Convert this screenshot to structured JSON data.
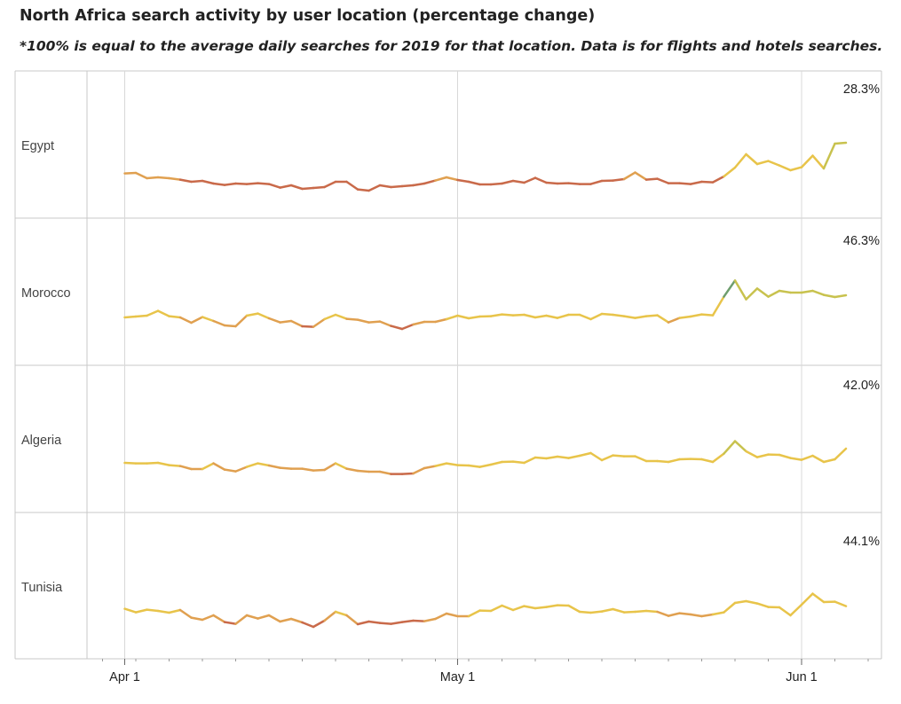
{
  "chart_data": {
    "type": "line",
    "title": "North Africa search activity by user location (percentage change)",
    "subtitle": "*100% is equal to the average daily searches for 2019 for that location. Data is for flights and hotels searches.",
    "xlabel": "",
    "ylabel": "",
    "x_ticks": [
      "Apr 1",
      "May 1",
      "Jun 1"
    ],
    "x_start_date": "2020-04-01",
    "x_tick_positions": [
      0,
      30,
      61
    ],
    "grid": true,
    "panels": [
      {
        "name": "Egypt",
        "end_label": "28.3%",
        "values": [
          -17.8,
          -17.5,
          -20.5,
          -20.0,
          -20.5,
          -21.3,
          -22.5,
          -22.0,
          -23.5,
          -24.3,
          -23.5,
          -23.8,
          -23.3,
          -23.8,
          -25.8,
          -24.5,
          -26.5,
          -26.0,
          -25.5,
          -22.5,
          -22.5,
          -26.8,
          -27.5,
          -24.5,
          -25.5,
          -25.0,
          -24.5,
          -23.5,
          -21.8,
          -20.0,
          -21.5,
          -22.5,
          -24.0,
          -24.0,
          -23.5,
          -22.0,
          -23.0,
          -20.3,
          -23.0,
          -23.5,
          -23.3,
          -23.8,
          -23.8,
          -22.0,
          -21.8,
          -21.0,
          -17.3,
          -21.3,
          -20.8,
          -23.3,
          -23.3,
          -23.8,
          -22.5,
          -22.8,
          -19.5,
          -14.5,
          -7.0,
          -12.5,
          -10.8,
          -13.3,
          -16.0,
          -14.3,
          -7.8,
          -15.0,
          -1.0,
          -0.5
        ],
        "last_value": 28.3
      },
      {
        "name": "Morocco",
        "end_label": "46.3%",
        "values": [
          -16.0,
          -15.5,
          -15.0,
          -12.3,
          -15.3,
          -16.0,
          -19.0,
          -15.8,
          -18.0,
          -20.5,
          -21.0,
          -15.0,
          -13.8,
          -16.5,
          -18.8,
          -18.0,
          -21.0,
          -21.3,
          -17.0,
          -14.5,
          -16.8,
          -17.3,
          -18.8,
          -18.3,
          -20.8,
          -22.5,
          -20.0,
          -18.5,
          -18.5,
          -17.0,
          -15.0,
          -16.5,
          -15.5,
          -15.3,
          -14.3,
          -14.8,
          -14.5,
          -16.0,
          -15.0,
          -16.3,
          -14.5,
          -14.5,
          -17.0,
          -14.0,
          -14.5,
          -15.3,
          -16.3,
          -15.3,
          -14.8,
          -18.8,
          -16.3,
          -15.5,
          -14.3,
          -14.8,
          -4.3,
          4.8,
          -5.8,
          0.3,
          -4.3,
          -1.0,
          -2.0,
          -2.0,
          -1.0,
          -3.3,
          -4.5,
          -3.5
        ],
        "last_value": 46.3
      },
      {
        "name": "Algeria",
        "end_label": "42.0%",
        "values": [
          -15.0,
          -15.3,
          -15.3,
          -15.0,
          -16.3,
          -16.8,
          -18.5,
          -18.5,
          -15.3,
          -18.8,
          -19.8,
          -17.3,
          -15.3,
          -16.5,
          -17.8,
          -18.3,
          -18.3,
          -19.3,
          -19.0,
          -15.3,
          -18.3,
          -19.5,
          -20.0,
          -20.0,
          -21.3,
          -21.3,
          -21.0,
          -18.0,
          -16.8,
          -15.3,
          -16.3,
          -16.5,
          -17.3,
          -16.0,
          -14.5,
          -14.3,
          -15.0,
          -12.0,
          -12.5,
          -11.5,
          -12.3,
          -11.0,
          -9.5,
          -13.5,
          -10.8,
          -11.3,
          -11.3,
          -14.0,
          -14.0,
          -14.5,
          -13.0,
          -12.8,
          -13.0,
          -14.5,
          -9.8,
          -2.8,
          -8.5,
          -11.8,
          -10.3,
          -10.5,
          -12.3,
          -13.3,
          -11.0,
          -14.5,
          -13.0,
          -7.0
        ],
        "last_value": 42.0
      },
      {
        "name": "Tunisia",
        "end_label": "44.1%",
        "values": [
          -14.3,
          -16.3,
          -14.8,
          -15.5,
          -16.5,
          -15.0,
          -19.3,
          -20.5,
          -18.0,
          -21.8,
          -22.8,
          -18.0,
          -19.8,
          -18.0,
          -21.5,
          -20.0,
          -22.0,
          -24.5,
          -21.0,
          -16.0,
          -18.0,
          -23.0,
          -21.5,
          -22.3,
          -22.8,
          -21.8,
          -21.0,
          -21.3,
          -20.0,
          -17.0,
          -18.5,
          -18.5,
          -15.3,
          -15.5,
          -12.5,
          -15.0,
          -12.8,
          -14.0,
          -13.3,
          -12.3,
          -12.5,
          -16.0,
          -16.5,
          -15.8,
          -14.5,
          -16.3,
          -16.0,
          -15.5,
          -16.0,
          -18.3,
          -16.8,
          -17.5,
          -18.5,
          -17.5,
          -16.3,
          -11.0,
          -10.0,
          -11.3,
          -13.3,
          -13.5,
          -18.0,
          -12.0,
          -5.8,
          -10.5,
          -10.3,
          -12.8
        ],
        "last_value": 44.1
      }
    ],
    "colors": {
      "low": "#c96a4a",
      "mid_low": "#e0a050",
      "mid": "#e8c44a",
      "mid_high": "#c8c24e",
      "high": "#6e9e6e",
      "grid": "#d8d8d8",
      "panel_border": "#c8c8c8"
    }
  }
}
